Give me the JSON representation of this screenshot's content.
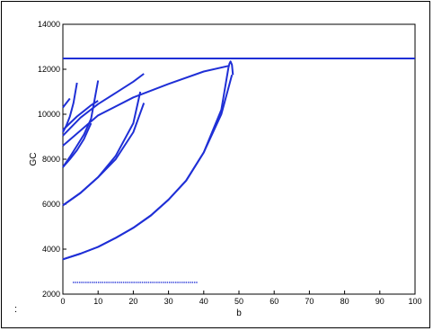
{
  "chart_data": {
    "type": "line",
    "title": "",
    "xlabel": "b",
    "ylabel": "GC",
    "xlim": [
      0,
      100
    ],
    "ylim": [
      2000,
      14000
    ],
    "xticks": [
      "0",
      "10",
      "20",
      "30",
      "40",
      "50",
      "60",
      "70",
      "80",
      "90",
      "100"
    ],
    "yticks": [
      "2000",
      "4000",
      "6000",
      "8000",
      "10000",
      "12000",
      "14000"
    ],
    "grid": false,
    "colors": {
      "line": "#1f2fd6",
      "axes": "#000000"
    },
    "horizontal_line": {
      "y": 12480,
      "x_range": [
        0,
        100
      ]
    },
    "series": [
      {
        "x": [
          0,
          5,
          10,
          15,
          20,
          25,
          30,
          35,
          40,
          45,
          47
        ],
        "y": [
          3550,
          3800,
          4100,
          4500,
          4950,
          5500,
          6200,
          7050,
          8300,
          10200,
          12050
        ]
      },
      {
        "x": [
          0,
          5,
          10,
          15,
          20,
          22
        ],
        "y": [
          5950,
          6500,
          7200,
          8150,
          9600,
          11000
        ]
      },
      {
        "x": [
          0,
          2,
          4,
          6,
          8,
          10
        ],
        "y": [
          7650,
          8100,
          8600,
          9100,
          9800,
          11500
        ]
      },
      {
        "x": [
          0,
          1,
          2,
          3,
          4
        ],
        "y": [
          9200,
          9500,
          9900,
          10500,
          11400
        ]
      },
      {
        "x": [
          0,
          1,
          2
        ],
        "y": [
          10300,
          10500,
          10700
        ]
      },
      {
        "x": [
          0,
          10,
          20,
          30,
          40,
          47
        ],
        "y": [
          8600,
          9950,
          10750,
          11350,
          11900,
          12150
        ]
      },
      {
        "x": [
          0,
          5,
          10,
          15,
          20,
          23
        ],
        "y": [
          9050,
          9850,
          10450,
          10950,
          11450,
          11800
        ]
      },
      {
        "x": [
          0,
          2,
          4,
          6,
          8,
          10
        ],
        "y": [
          9300,
          9600,
          9900,
          10150,
          10400,
          10600
        ]
      },
      {
        "x": [
          47,
          47.3,
          47.6,
          48,
          48.3
        ],
        "y": [
          12050,
          12250,
          12350,
          12200,
          11750
        ]
      },
      {
        "x": [
          0,
          5,
          10,
          15,
          20,
          25,
          30,
          35,
          40,
          45,
          48
        ],
        "y": [
          3550,
          3800,
          4100,
          4500,
          4950,
          5500,
          6200,
          7050,
          8300,
          10000,
          11750
        ]
      },
      {
        "x": [
          0,
          2,
          4,
          6,
          8
        ],
        "y": [
          7650,
          8000,
          8400,
          8900,
          9600
        ]
      },
      {
        "x": [
          0,
          5,
          10,
          15,
          20,
          23
        ],
        "y": [
          5950,
          6500,
          7200,
          8000,
          9200,
          10500
        ]
      }
    ],
    "dots": {
      "y": 2520,
      "x_range": [
        3,
        38
      ],
      "count": 60
    }
  }
}
